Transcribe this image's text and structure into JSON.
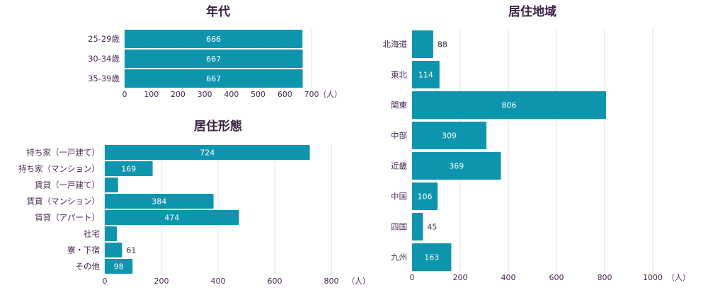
{
  "colors": {
    "bar": "#0e95ae",
    "text": "#4b2a55",
    "grid": "#e2e2e2",
    "value_inside": "#ffffff"
  },
  "chart_data": [
    {
      "id": "age",
      "type": "bar",
      "orientation": "horizontal",
      "title": "年代",
      "categories": [
        "25-29歳",
        "30-34歳",
        "35-39歳"
      ],
      "values": [
        666,
        667,
        667
      ],
      "xlim": [
        0,
        700
      ],
      "ticks": [
        "0",
        "100",
        "200",
        "300",
        "400",
        "500",
        "600",
        "700"
      ],
      "tick_values": [
        0,
        100,
        200,
        300,
        400,
        500,
        600,
        700
      ],
      "unit": "（人）",
      "grid": true
    },
    {
      "id": "housing",
      "type": "bar",
      "orientation": "horizontal",
      "title": "居住形態",
      "categories": [
        "持ち家（一戸建て）",
        "持ち家（マンション）",
        "賃貸（一戸建て）",
        "賃貸（マンション）",
        "賃貸（アパート）",
        "社宅",
        "寮・下宿",
        "その他"
      ],
      "values": [
        724,
        169,
        47,
        384,
        474,
        43,
        61,
        98
      ],
      "value_labels": [
        "724",
        "169",
        "",
        "384",
        "474",
        "",
        "61",
        "98"
      ],
      "xlim": [
        0,
        800
      ],
      "ticks": [
        "0",
        "200",
        "400",
        "600",
        "800"
      ],
      "tick_values": [
        0,
        200,
        400,
        600,
        800
      ],
      "unit": "（人）",
      "grid": true
    },
    {
      "id": "region",
      "type": "bar",
      "orientation": "horizontal",
      "title": "居住地域",
      "categories": [
        "北海道",
        "東北",
        "関東",
        "中部",
        "近畿",
        "中国",
        "四国",
        "九州"
      ],
      "values": [
        88,
        114,
        806,
        309,
        369,
        106,
        45,
        163
      ],
      "value_labels": [
        "88",
        "114",
        "806",
        "309",
        "369",
        "106",
        "45",
        "163"
      ],
      "xlim": [
        0,
        1000
      ],
      "ticks": [
        "0",
        "200",
        "400",
        "600",
        "800",
        "1000"
      ],
      "tick_values": [
        0,
        200,
        400,
        600,
        800,
        1000
      ],
      "unit": "（人）",
      "grid": true
    }
  ]
}
